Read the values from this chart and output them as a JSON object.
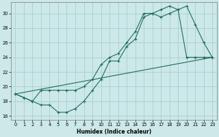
{
  "xlabel": "Humidex (Indice chaleur)",
  "bg_color": "#cce8e8",
  "grid_color": "#aacece",
  "line_color": "#1a6b58",
  "xlim": [
    -0.5,
    23.5
  ],
  "ylim": [
    15.5,
    31.5
  ],
  "xticks": [
    0,
    1,
    2,
    3,
    4,
    5,
    6,
    7,
    8,
    9,
    10,
    11,
    12,
    13,
    14,
    15,
    16,
    17,
    18,
    19,
    20,
    21,
    22,
    23
  ],
  "yticks": [
    16,
    18,
    20,
    22,
    24,
    26,
    28,
    30
  ],
  "line1_x": [
    0,
    1,
    2,
    3,
    4,
    5,
    6,
    7,
    8,
    9,
    10,
    11,
    12,
    13,
    14,
    15,
    16,
    17,
    18,
    19,
    20,
    21,
    22,
    23
  ],
  "line1_y": [
    19.0,
    18.5,
    18.0,
    17.5,
    17.5,
    16.5,
    16.5,
    17.0,
    18.0,
    19.5,
    21.0,
    23.5,
    23.5,
    25.5,
    26.5,
    29.5,
    30.0,
    29.5,
    30.0,
    30.5,
    31.0,
    28.5,
    26.0,
    24.0
  ],
  "line2_x": [
    0,
    1,
    2,
    3,
    4,
    5,
    6,
    7,
    8,
    9,
    10,
    11,
    12,
    13,
    14,
    15,
    16,
    17,
    18,
    19,
    20,
    21,
    22,
    23
  ],
  "line2_y": [
    19.0,
    18.5,
    18.0,
    19.5,
    19.5,
    19.5,
    19.5,
    19.5,
    20.0,
    21.0,
    23.0,
    24.0,
    24.5,
    26.0,
    27.5,
    30.0,
    30.0,
    30.5,
    31.0,
    30.5,
    24.0,
    24.0,
    24.0,
    24.0
  ],
  "line3_x": [
    0,
    23
  ],
  "line3_y": [
    19.0,
    24.0
  ],
  "xlabel_fontsize": 5.5,
  "tick_fontsize": 4.8,
  "marker_size": 3.0
}
